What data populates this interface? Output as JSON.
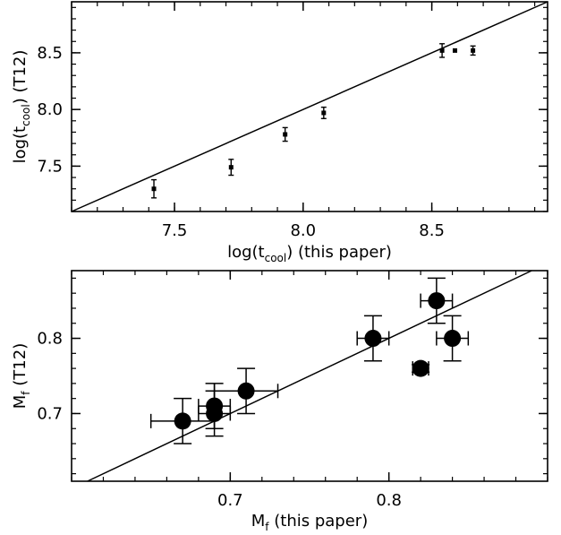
{
  "chart_data": [
    {
      "type": "scatter",
      "panel": "top",
      "xlabel": "log(t",
      "xlabel_sub": "cool",
      "xlabel_tail": ") (this paper)",
      "ylabel": "log(t",
      "ylabel_sub": "cool",
      "ylabel_tail": ") (T12)",
      "xlim": [
        7.1,
        8.95
      ],
      "ylim": [
        7.1,
        8.95
      ],
      "xticks": [
        "7.5",
        "8.0",
        "8.5"
      ],
      "yticks": [
        "7.5",
        "8.0",
        "8.5"
      ],
      "one_to_one_line": true,
      "series": [
        {
          "marker": "small-square",
          "points": [
            {
              "x": 7.42,
              "y": 7.3,
              "yerr": 0.08
            },
            {
              "x": 7.72,
              "y": 7.49,
              "yerr": 0.07
            },
            {
              "x": 7.93,
              "y": 7.78,
              "yerr": 0.06
            },
            {
              "x": 8.08,
              "y": 7.97,
              "yerr": 0.05
            },
            {
              "x": 8.54,
              "y": 8.52,
              "yerr": 0.06
            },
            {
              "x": 8.59,
              "y": 8.52,
              "yerr": 0.0
            },
            {
              "x": 8.66,
              "y": 8.52,
              "yerr": 0.04
            }
          ]
        }
      ]
    },
    {
      "type": "scatter",
      "panel": "bottom",
      "xlabel": "M",
      "xlabel_sub": "f",
      "xlabel_tail": " (this paper)",
      "ylabel": "M",
      "ylabel_sub": "f",
      "ylabel_tail": " (T12)",
      "xlim": [
        0.6,
        0.9
      ],
      "ylim": [
        0.61,
        0.89
      ],
      "xticks": [
        "0.7",
        "0.8"
      ],
      "yticks": [
        "0.7",
        "0.8"
      ],
      "one_to_one_line": true,
      "series": [
        {
          "marker": "large-circle",
          "points": [
            {
              "x": 0.67,
              "y": 0.69,
              "xerr": 0.02,
              "yerr": 0.03
            },
            {
              "x": 0.69,
              "y": 0.7,
              "xerr": 0.01,
              "yerr": 0.03
            },
            {
              "x": 0.69,
              "y": 0.71,
              "xerr": 0.01,
              "yerr": 0.03
            },
            {
              "x": 0.71,
              "y": 0.73,
              "xerr": 0.02,
              "yerr": 0.03
            },
            {
              "x": 0.79,
              "y": 0.8,
              "xerr": 0.01,
              "yerr": 0.03
            },
            {
              "x": 0.82,
              "y": 0.76,
              "xerr": 0.005,
              "yerr": 0.005
            },
            {
              "x": 0.83,
              "y": 0.85,
              "xerr": 0.01,
              "yerr": 0.03
            },
            {
              "x": 0.84,
              "y": 0.8,
              "xerr": 0.01,
              "yerr": 0.03
            }
          ]
        }
      ]
    }
  ]
}
